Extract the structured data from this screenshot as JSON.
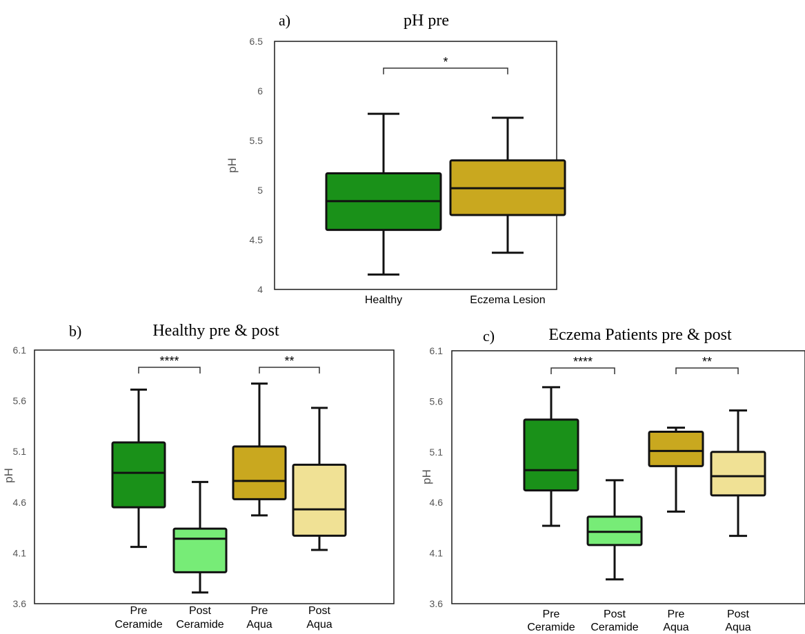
{
  "chart_data": [
    {
      "type": "box",
      "panel_label": "a)",
      "title": "pH pre",
      "xlabel": "",
      "ylabel": "pH",
      "ylim": [
        4,
        6.5
      ],
      "yticks": [
        "4",
        "4.5",
        "5",
        "5.5",
        "6",
        "6.5"
      ],
      "grid": false,
      "categories": [
        [
          "Healthy"
        ],
        [
          "Eczema Lesion"
        ]
      ],
      "boxes": [
        {
          "category": "Healthy",
          "min": 4.15,
          "q1": 4.6,
          "median": 4.89,
          "q3": 5.17,
          "max": 5.77,
          "color": "#1a9119"
        },
        {
          "category": "Eczema Lesion",
          "min": 4.37,
          "q1": 4.75,
          "median": 5.02,
          "q3": 5.3,
          "max": 5.73,
          "color": "#c9a81f"
        }
      ],
      "significance": [
        {
          "from": 0,
          "to": 1,
          "y": 6.23,
          "label": "*"
        }
      ]
    },
    {
      "type": "box",
      "panel_label": "b)",
      "title": "Healthy pre & post",
      "xlabel": "",
      "ylabel": "pH",
      "ylim": [
        3.6,
        6.1
      ],
      "yticks": [
        "3.6",
        "4.1",
        "4.6",
        "5.1",
        "5.6",
        "6.1"
      ],
      "grid": false,
      "categories": [
        [
          "Pre",
          "Ceramide"
        ],
        [
          "Post",
          "Ceramide"
        ],
        [
          "Pre",
          "Aqua"
        ],
        [
          "Post",
          "Aqua"
        ]
      ],
      "boxes": [
        {
          "category": "Pre Ceramide",
          "min": 4.16,
          "q1": 4.55,
          "median": 4.89,
          "q3": 5.19,
          "max": 5.71,
          "color": "#1a9119"
        },
        {
          "category": "Post Ceramide",
          "min": 3.71,
          "q1": 3.91,
          "median": 4.24,
          "q3": 4.34,
          "max": 4.8,
          "color": "#77ec77"
        },
        {
          "category": "Pre Aqua",
          "min": 4.47,
          "q1": 4.63,
          "median": 4.81,
          "q3": 5.15,
          "max": 5.77,
          "color": "#c9a81f"
        },
        {
          "category": "Post Aqua",
          "min": 4.13,
          "q1": 4.27,
          "median": 4.53,
          "q3": 4.97,
          "max": 5.53,
          "color": "#f0e195"
        }
      ],
      "significance": [
        {
          "from": 0,
          "to": 1,
          "y": 5.93,
          "label": "****"
        },
        {
          "from": 2,
          "to": 3,
          "y": 5.93,
          "label": "**"
        }
      ]
    },
    {
      "type": "box",
      "panel_label": "c)",
      "title": "Eczema Patients pre & post",
      "xlabel": "",
      "ylabel": "pH",
      "ylim": [
        3.6,
        6.1
      ],
      "yticks": [
        "3.6",
        "4.1",
        "4.6",
        "5.1",
        "5.6",
        "6.1"
      ],
      "grid": false,
      "categories": [
        [
          "Pre",
          "Ceramide"
        ],
        [
          "Post",
          "Ceramide"
        ],
        [
          "Pre",
          "Aqua"
        ],
        [
          "Post",
          "Aqua"
        ]
      ],
      "boxes": [
        {
          "category": "Pre Ceramide",
          "min": 4.37,
          "q1": 4.72,
          "median": 4.92,
          "q3": 5.42,
          "max": 5.74,
          "color": "#1a9119"
        },
        {
          "category": "Post Ceramide",
          "min": 3.84,
          "q1": 4.18,
          "median": 4.31,
          "q3": 4.46,
          "max": 4.82,
          "color": "#77ec77"
        },
        {
          "category": "Pre Aqua",
          "min": 4.51,
          "q1": 4.96,
          "median": 5.11,
          "q3": 5.3,
          "max": 5.34,
          "color": "#c9a81f"
        },
        {
          "category": "Post Aqua",
          "min": 4.27,
          "q1": 4.67,
          "median": 4.86,
          "q3": 5.1,
          "max": 5.51,
          "color": "#f0e195"
        }
      ],
      "significance": [
        {
          "from": 0,
          "to": 1,
          "y": 5.93,
          "label": "****"
        },
        {
          "from": 2,
          "to": 3,
          "y": 5.93,
          "label": "**"
        }
      ]
    }
  ]
}
